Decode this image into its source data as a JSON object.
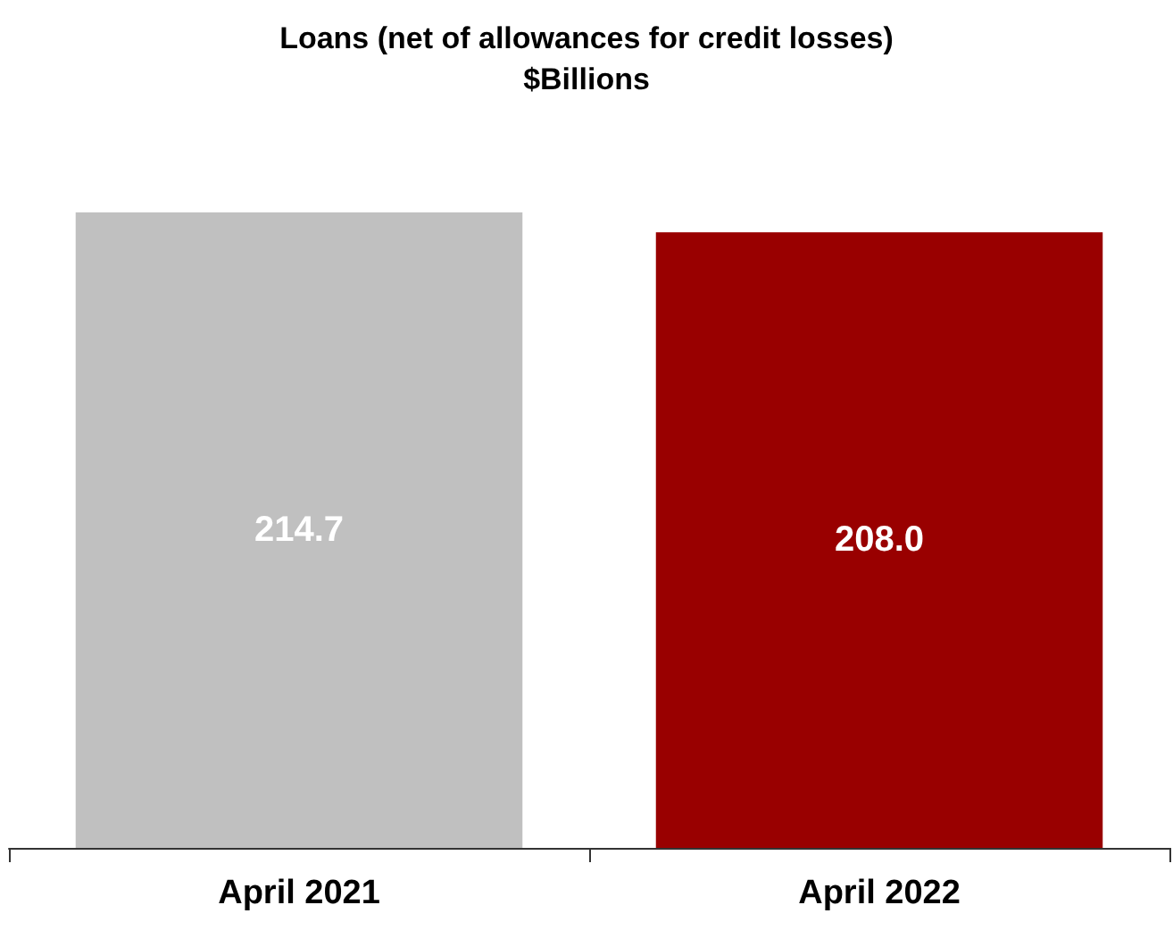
{
  "chart_data": {
    "type": "bar",
    "title": "Loans (net of allowances for credit losses)",
    "subtitle": "$Billions",
    "categories": [
      "April 2021",
      "April 2022"
    ],
    "values": [
      214.7,
      208.0
    ],
    "value_labels": [
      "214.7",
      "208.0"
    ],
    "colors": [
      "#c0c0c0",
      "#990000"
    ]
  }
}
